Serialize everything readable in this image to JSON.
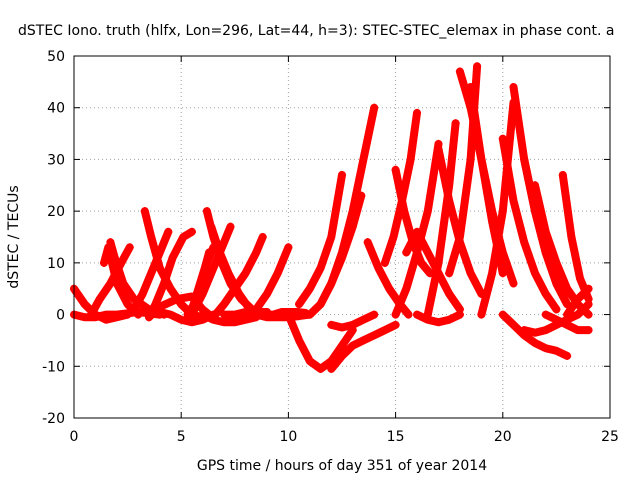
{
  "chart_data": {
    "type": "scatter",
    "title": "dSTEC Iono. truth (hlfx, Lon=296, Lat=44, h=3): STEC-STEC_elemax in phase cont. a",
    "xlabel": "GPS time / hours of day 351 of year 2014",
    "ylabel": "dSTEC  / TECUs",
    "xlim": [
      0,
      25
    ],
    "ylim": [
      -20,
      50
    ],
    "x_ticks": [
      0,
      5,
      10,
      15,
      20,
      25
    ],
    "y_ticks": [
      -20,
      -10,
      0,
      10,
      20,
      30,
      40,
      50
    ],
    "grid": true,
    "legend": "none",
    "marker": "plus",
    "color": "#ff0000",
    "series": [
      {
        "x": [
          0.0,
          0.5,
          1.0,
          1.5,
          2.0,
          2.5
        ],
        "y": [
          5,
          2,
          0,
          -1,
          -0.5,
          0
        ]
      },
      {
        "x": [
          0.0,
          0.5,
          1.0,
          1.5,
          2.0,
          3.0,
          4.0
        ],
        "y": [
          0,
          -0.5,
          -0.5,
          0,
          0,
          0.5,
          0
        ]
      },
      {
        "x": [
          0.8,
          1.2,
          1.7,
          2.2,
          2.6
        ],
        "y": [
          0,
          3,
          6,
          10,
          13
        ]
      },
      {
        "x": [
          1.4,
          1.6,
          2.0,
          2.5,
          3.0
        ],
        "y": [
          10,
          13,
          6,
          2,
          0
        ]
      },
      {
        "x": [
          1.7,
          1.9,
          2.3,
          2.8,
          3.5,
          4.2
        ],
        "y": [
          14,
          11,
          6,
          3,
          1,
          0
        ]
      },
      {
        "x": [
          2.8,
          3.2,
          3.6,
          4.0,
          4.4
        ],
        "y": [
          1,
          4,
          8,
          12,
          16
        ]
      },
      {
        "x": [
          3.3,
          3.6,
          4.0,
          4.5,
          5.0,
          5.5,
          6.0
        ],
        "y": [
          20,
          15,
          9,
          5,
          2,
          0,
          -0.5
        ]
      },
      {
        "x": [
          3.5,
          3.8,
          4.2,
          4.6,
          5.1,
          5.5
        ],
        "y": [
          -0.5,
          2,
          6,
          11,
          15,
          16
        ]
      },
      {
        "x": [
          3.5,
          4.0,
          4.8,
          5.5,
          6.0,
          6.3
        ],
        "y": [
          -0.5,
          1.5,
          3,
          3.5,
          1,
          0
        ]
      },
      {
        "x": [
          4.0,
          4.5,
          5.0,
          5.5,
          6.0,
          6.5
        ],
        "y": [
          0.5,
          0,
          -1,
          -1.5,
          -1,
          0
        ]
      },
      {
        "x": [
          5.3,
          5.6,
          5.9,
          6.2,
          6.5
        ],
        "y": [
          0,
          2,
          6,
          10,
          13
        ]
      },
      {
        "x": [
          5.5,
          5.8,
          6.1,
          6.3
        ],
        "y": [
          1,
          5,
          9,
          12
        ]
      },
      {
        "x": [
          6.2,
          6.5,
          6.9,
          7.3,
          7.8,
          8.3,
          8.8
        ],
        "y": [
          20,
          15,
          10,
          6,
          3,
          1,
          0
        ]
      },
      {
        "x": [
          6.4,
          6.8,
          7.2,
          7.7,
          8.2,
          8.7
        ],
        "y": [
          17,
          12,
          8,
          4,
          1,
          0
        ]
      },
      {
        "x": [
          5.5,
          6.0,
          6.5,
          7.0,
          7.3
        ],
        "y": [
          0,
          4,
          9,
          14,
          17
        ]
      },
      {
        "x": [
          6.0,
          6.5,
          7.0,
          7.5,
          8.0,
          8.5
        ],
        "y": [
          0,
          -1,
          -1.5,
          -1.5,
          -1,
          -0.5
        ]
      },
      {
        "x": [
          6.6,
          7.0,
          7.5,
          8.0,
          8.5,
          8.8
        ],
        "y": [
          0,
          2,
          5,
          8,
          12,
          15
        ]
      },
      {
        "x": [
          7.0,
          7.5,
          8.0,
          8.5,
          9.0
        ],
        "y": [
          0,
          0,
          0.5,
          0.5,
          0.5
        ]
      },
      {
        "x": [
          8.0,
          8.5,
          9.0,
          9.5,
          10.0
        ],
        "y": [
          0,
          1,
          4,
          8,
          13
        ]
      },
      {
        "x": [
          8.5,
          9.0,
          9.5,
          10.0,
          10.5,
          11.0
        ],
        "y": [
          0,
          -0.5,
          -0.5,
          -0.5,
          -0.3,
          0
        ]
      },
      {
        "x": [
          9.0,
          9.3,
          9.7,
          10.0,
          10.4,
          10.8
        ],
        "y": [
          0,
          0,
          0.5,
          0.5,
          0.5,
          0.3
        ]
      },
      {
        "x": [
          10.0,
          10.5,
          11.0,
          11.5,
          12.0,
          12.5,
          13.0
        ],
        "y": [
          0,
          -5,
          -9,
          -10.5,
          -9,
          -6,
          -3
        ]
      },
      {
        "x": [
          10.5,
          11.0,
          11.5,
          12.0,
          12.5
        ],
        "y": [
          2,
          5,
          9,
          15,
          27
        ]
      },
      {
        "x": [
          11.0,
          11.5,
          12.0,
          12.5,
          13.0,
          13.4
        ],
        "y": [
          0,
          2,
          6,
          11,
          17,
          23
        ]
      },
      {
        "x": [
          11.5,
          12.0,
          12.5,
          13.0,
          13.5,
          14.0
        ],
        "y": [
          2,
          6,
          12,
          20,
          30,
          40
        ]
      },
      {
        "x": [
          12.0,
          12.5,
          13.0,
          13.5,
          14.0,
          14.5,
          15.0
        ],
        "y": [
          -10.5,
          -8,
          -6,
          -5,
          -4,
          -3,
          -2
        ]
      },
      {
        "x": [
          12.0,
          12.5,
          13.0,
          13.5,
          14.0
        ],
        "y": [
          -2,
          -2.5,
          -2,
          -1,
          0
        ]
      },
      {
        "x": [
          13.7,
          14.2,
          14.7,
          15.2,
          15.6
        ],
        "y": [
          14,
          9,
          5,
          2,
          0
        ]
      },
      {
        "x": [
          14.5,
          14.9,
          15.3,
          15.7,
          16.0
        ],
        "y": [
          10,
          15,
          22,
          30,
          39
        ]
      },
      {
        "x": [
          15.0,
          15.4,
          15.8,
          16.2,
          16.6
        ],
        "y": [
          28,
          20,
          14,
          10,
          8
        ]
      },
      {
        "x": [
          15.0,
          15.5,
          16.0,
          16.5,
          17.0
        ],
        "y": [
          0,
          5,
          12,
          20,
          33
        ]
      },
      {
        "x": [
          15.5,
          16.0,
          16.5,
          17.0,
          17.5,
          18.0
        ],
        "y": [
          12,
          16,
          12,
          8,
          4,
          1
        ]
      },
      {
        "x": [
          16.0,
          16.5,
          17.0,
          17.5,
          18.0
        ],
        "y": [
          0,
          -1,
          -1.5,
          -1,
          0
        ]
      },
      {
        "x": [
          16.5,
          17.0,
          17.5,
          17.8
        ],
        "y": [
          0,
          10,
          25,
          37
        ]
      },
      {
        "x": [
          17.0,
          17.5,
          18.0,
          18.5,
          19.0
        ],
        "y": [
          32,
          22,
          14,
          8,
          4
        ]
      },
      {
        "x": [
          17.5,
          18.0,
          18.5,
          18.8
        ],
        "y": [
          8,
          15,
          30,
          48
        ]
      },
      {
        "x": [
          18.0,
          18.5,
          19.0,
          19.5,
          20.0
        ],
        "y": [
          47,
          40,
          30,
          18,
          8
        ]
      },
      {
        "x": [
          18.5,
          19.0,
          19.5,
          20.0,
          20.5
        ],
        "y": [
          44,
          30,
          20,
          12,
          6
        ]
      },
      {
        "x": [
          19.0,
          19.5,
          20.0,
          20.5
        ],
        "y": [
          0,
          8,
          20,
          41
        ]
      },
      {
        "x": [
          20.0,
          20.5,
          21.0,
          21.5,
          22.0,
          22.5
        ],
        "y": [
          34,
          22,
          14,
          8,
          4,
          1
        ]
      },
      {
        "x": [
          20.5,
          21.0,
          21.5,
          22.0,
          22.5,
          23.0
        ],
        "y": [
          44,
          30,
          20,
          12,
          6,
          2
        ]
      },
      {
        "x": [
          21.0,
          21.5,
          22.0,
          22.5,
          23.0
        ],
        "y": [
          30,
          20,
          12,
          6,
          2
        ]
      },
      {
        "x": [
          21.5,
          22.0,
          22.5,
          23.0,
          23.5,
          24.0
        ],
        "y": [
          25,
          16,
          10,
          5,
          2,
          0
        ]
      },
      {
        "x": [
          22.8,
          23.2,
          23.6,
          24.0
        ],
        "y": [
          27,
          15,
          7,
          3
        ]
      },
      {
        "x": [
          20.0,
          20.5,
          21.0,
          21.5,
          22.0,
          22.5,
          23.0
        ],
        "y": [
          0,
          -2,
          -4,
          -5.5,
          -6.5,
          -7,
          -8
        ]
      },
      {
        "x": [
          21.0,
          21.5,
          22.0,
          22.5,
          23.0,
          23.5,
          24.0
        ],
        "y": [
          -3,
          -3.5,
          -3,
          -2,
          -1,
          0,
          2
        ]
      },
      {
        "x": [
          22.0,
          22.5,
          23.0,
          23.5,
          24.0
        ],
        "y": [
          0,
          -1,
          -2,
          -3,
          -3
        ]
      },
      {
        "x": [
          23.0,
          23.5,
          24.0
        ],
        "y": [
          0,
          3,
          5
        ]
      }
    ]
  }
}
